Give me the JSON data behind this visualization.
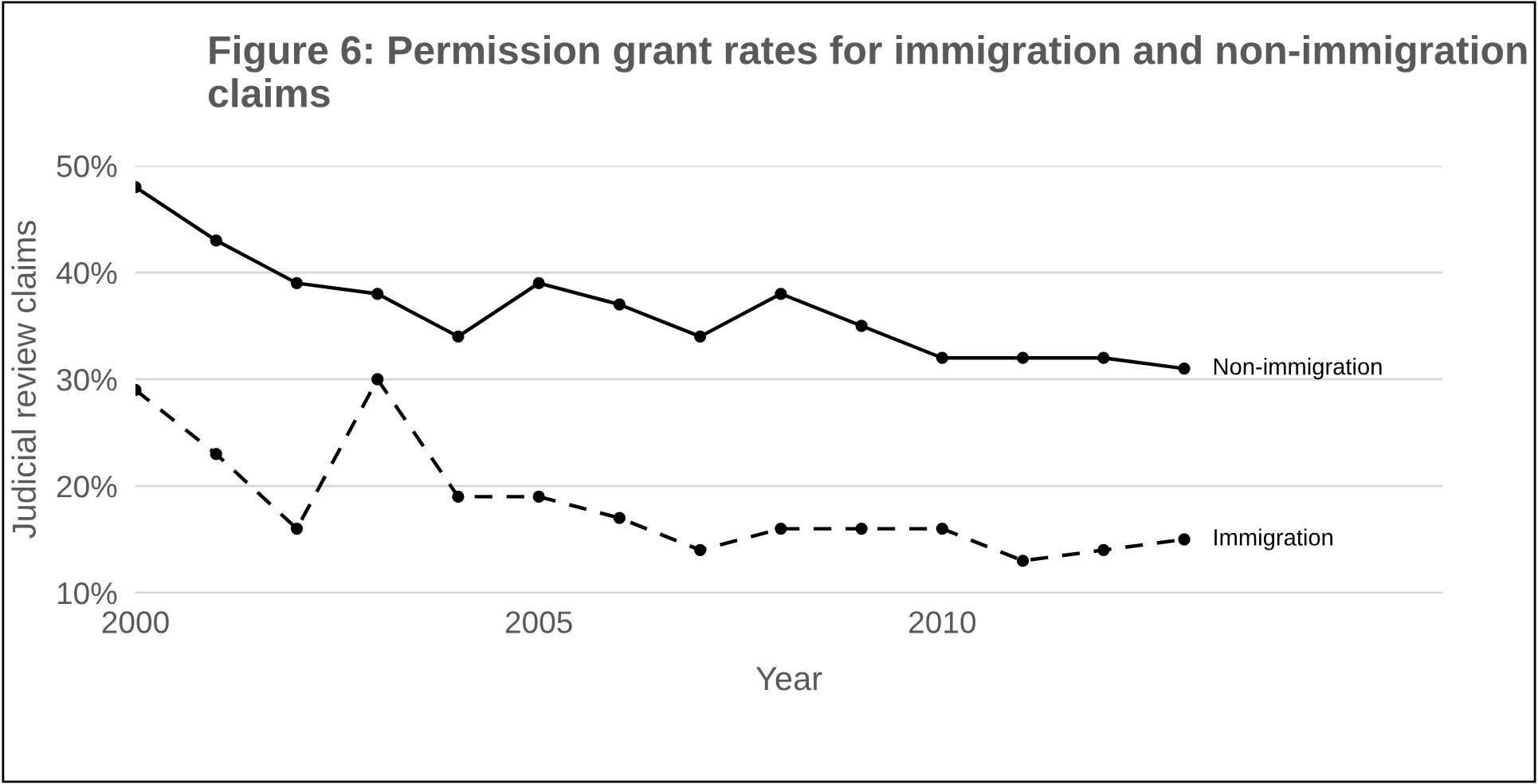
{
  "chart_data": {
    "type": "line",
    "title": "Figure 6: Permission grant rates for immigration and non-immigration claims",
    "xlabel": "Year",
    "ylabel": "Judicial review claims",
    "x": [
      2000,
      2001,
      2002,
      2003,
      2004,
      2005,
      2006,
      2007,
      2008,
      2009,
      2010,
      2011,
      2012,
      2013
    ],
    "series": [
      {
        "name": "Non-immigration",
        "color": "#000000",
        "line_style": "solid",
        "values": [
          48,
          43,
          39,
          38,
          34,
          39,
          37,
          34,
          38,
          35,
          32,
          32,
          32,
          31
        ]
      },
      {
        "name": "Immigration",
        "color": "#000000",
        "line_style": "dashed",
        "values": [
          29,
          23,
          16,
          30,
          19,
          19,
          17,
          14,
          16,
          16,
          16,
          13,
          14,
          15
        ]
      }
    ],
    "xlim": [
      2000,
      2016.2
    ],
    "xticks": [
      2000,
      2005,
      2010
    ],
    "ylim": [
      10,
      50
    ],
    "yticks": [
      {
        "value": 10,
        "label": "10%"
      },
      {
        "value": 20,
        "label": "20%"
      },
      {
        "value": 30,
        "label": "30%"
      },
      {
        "value": 40,
        "label": "40%"
      },
      {
        "value": 50,
        "label": "50%"
      }
    ],
    "grid": "y",
    "legend": false,
    "marker": "circle"
  }
}
